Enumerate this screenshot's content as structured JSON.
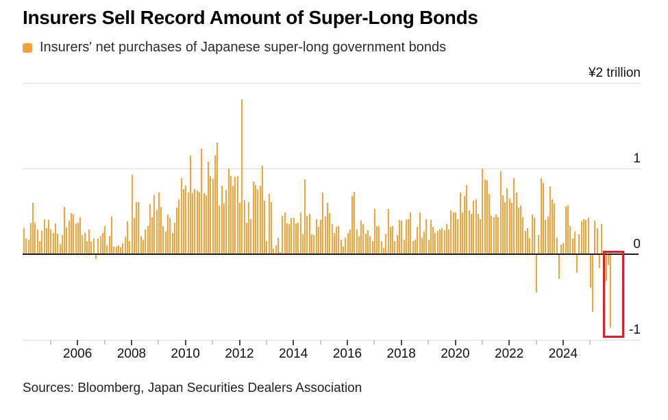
{
  "title": "Insurers Sell Record Amount of Super-Long Bonds",
  "legend": {
    "label": "Insurers' net purchases of Japanese super-long government bonds"
  },
  "source": "Sources: Bloomberg, Japan Securities Dealers Association",
  "colors": {
    "bar": "#f4a339",
    "legend_swatch": "#f4a339",
    "highlight_box": "#db2127",
    "gridline": "#d9d9d9",
    "zero_line": "#1b1b1b",
    "axis_tick_major": "#4a4a4a",
    "axis_tick_minor": "#c9c9c9",
    "text": "#000000",
    "secondary_text": "#2d2d2d"
  },
  "chart_data": {
    "type": "bar",
    "title": "Insurers Sell Record Amount of Super-Long Bonds",
    "series_name": "Insurers' net purchases of Japanese super-long government bonds",
    "unit": "¥ trillion",
    "frequency": "monthly",
    "start": {
      "year": 2004,
      "month": 1
    },
    "end": {
      "year": 2025,
      "month": 10
    },
    "ylim": [
      -1,
      2
    ],
    "grid": "horizontal",
    "legend_position": "top-left",
    "y_axis_side": "right",
    "y_labels": [
      {
        "value": 2,
        "label": "¥2 trillion"
      },
      {
        "value": 1,
        "label": "1"
      },
      {
        "value": 0,
        "label": "0"
      },
      {
        "value": -1,
        "label": "-1"
      }
    ],
    "xtick_years_labeled": [
      2006,
      2008,
      2010,
      2012,
      2014,
      2016,
      2018,
      2020,
      2022,
      2024
    ],
    "xtick_years_minor": [
      2005,
      2007,
      2009,
      2011,
      2013,
      2015,
      2017,
      2019,
      2021,
      2023,
      2025
    ],
    "values_by_year": {
      "2004": [
        0.3,
        0.18,
        0.17,
        0.37,
        0.6,
        0.37,
        0.29,
        0.15,
        0.27,
        0.41,
        0.3,
        0.4
      ],
      "2005": [
        0.29,
        0.25,
        0.36,
        0.24,
        0.12,
        0.22,
        0.55,
        0.31,
        0.39,
        0.48,
        0.46,
        0.36
      ],
      "2006": [
        0.37,
        0.43,
        0.22,
        0.25,
        0.15,
        0.29,
        0.14,
        0.18,
        -0.05,
        0.18,
        0.21,
        0.25
      ],
      "2007": [
        0.33,
        0.1,
        0.21,
        0.44,
        0.09,
        0.09,
        0.1,
        0.08,
        0.13,
        0.2,
        0.38,
        0.15
      ],
      "2008": [
        0.93,
        0.42,
        0.61,
        0.61,
        0.21,
        0.17,
        0.29,
        0.33,
        0.58,
        0.43,
        0.69,
        0.52
      ],
      "2009": [
        0.72,
        0.55,
        0.33,
        0.26,
        0.46,
        0.42,
        0.25,
        0.37,
        0.54,
        0.64,
        0.89,
        0.76
      ],
      "2010": [
        0.8,
        0.72,
        1.15,
        0.71,
        0.76,
        0.74,
        0.72,
        1.23,
        0.71,
        0.69,
        1.08,
        0.91
      ],
      "2011": [
        0.88,
        1.15,
        1.3,
        0.57,
        0.8,
        0.59,
        0.75,
        1.0,
        0.91,
        0.8,
        0.9,
        0.91
      ],
      "2012": [
        0.6,
        1.81,
        0.63,
        0.37,
        0.61,
        0.41,
        0.85,
        0.81,
        0.76,
        0.8,
        1.03,
        0.62
      ],
      "2013": [
        0.15,
        0.7,
        0.61,
        0.06,
        0.1,
        0.19,
        0.02,
        0.45,
        0.49,
        0.36,
        0.35,
        0.42
      ],
      "2014": [
        0.42,
        0.36,
        0.37,
        0.49,
        0.23,
        0.87,
        0.45,
        0.47,
        0.23,
        0.22,
        0.41,
        0.32
      ],
      "2015": [
        0.4,
        0.72,
        0.44,
        0.6,
        0.48,
        0.35,
        0.25,
        0.32,
        0.33,
        0.17,
        0.09,
        0.19
      ],
      "2016": [
        0.25,
        0.29,
        0.68,
        0.73,
        0.29,
        0.21,
        0.39,
        0.35,
        0.24,
        0.28,
        0.21,
        0.15
      ],
      "2017": [
        0.53,
        0.33,
        0.33,
        0.15,
        0.07,
        0.24,
        0.53,
        0.32,
        0.33,
        0.15,
        0.22,
        0.4
      ],
      "2018": [
        0.39,
        0.17,
        0.4,
        0.41,
        0.49,
        0.15,
        0.17,
        0.32,
        0.49,
        0.19,
        0.26,
        0.41
      ],
      "2019": [
        0.17,
        0.4,
        0.32,
        0.25,
        0.27,
        0.29,
        0.3,
        0.28,
        0.35,
        0.29,
        0.51,
        0.49
      ],
      "2020": [
        0.49,
        0.41,
        0.72,
        0.49,
        0.68,
        0.81,
        0.51,
        0.47,
        0.62,
        0.64,
        0.47,
        0.41
      ],
      "2021": [
        1.0,
        0.87,
        0.86,
        0.7,
        0.45,
        0.43,
        0.46,
        0.43,
        0.97,
        0.69,
        0.61,
        0.77
      ],
      "2022": [
        0.65,
        0.6,
        0.89,
        0.72,
        0.54,
        0.57,
        0.43,
        0.27,
        0.3,
        0.18,
        0.46,
        0.42
      ],
      "2023": [
        -0.44,
        0.22,
        0.89,
        0.83,
        0.4,
        0.44,
        0.79,
        0.64,
        0.59,
        0.19,
        -0.28,
        0.11
      ],
      "2024": [
        0.13,
        0.56,
        0.57,
        0.33,
        0.18,
        0.26,
        -0.21,
        0.23,
        0.38,
        0.41,
        0.4,
        0.42
      ],
      "2025": [
        -0.38,
        -0.66,
        0.39,
        0.3,
        -0.15,
        0.35,
        -0.25,
        -0.3,
        -0.12,
        -0.85
      ]
    },
    "highlight": {
      "shape": "red-rectangle",
      "covers": "Jul 2025 - Oct 2025 (last 4 bars)",
      "meaning": "record monthly net selling",
      "min_value": -0.85
    }
  }
}
